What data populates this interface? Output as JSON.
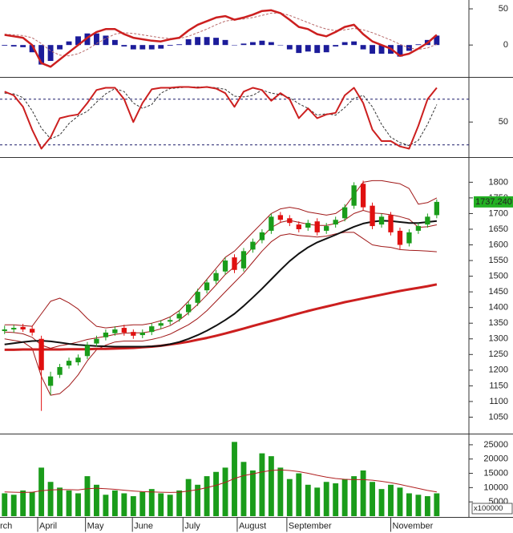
{
  "chart_data": {
    "x": [
      0,
      1,
      2,
      3,
      4,
      5,
      6,
      7,
      8,
      9,
      10,
      11,
      12,
      13,
      14,
      15,
      16,
      17,
      18,
      19,
      20,
      21,
      22,
      23,
      24,
      25,
      26,
      27,
      28,
      29,
      30,
      31,
      32,
      33,
      34,
      35,
      36,
      37,
      38,
      39,
      40,
      41,
      42,
      43,
      44,
      45,
      46,
      47
    ],
    "xlim": [
      -0.5,
      50.5
    ],
    "xticks": [
      {
        "value": -0.7,
        "label": "rch"
      },
      {
        "value": 3.6,
        "label": "April"
      },
      {
        "value": 8.8,
        "label": "May"
      },
      {
        "value": 13.9,
        "label": "June"
      },
      {
        "value": 19.4,
        "label": "July"
      },
      {
        "value": 25.3,
        "label": "August"
      },
      {
        "value": 30.7,
        "label": "September"
      },
      {
        "value": 42,
        "label": "November"
      }
    ],
    "panels": [
      {
        "type": "line",
        "ylim": [
          -43,
          60
        ],
        "yticks": [
          0,
          50
        ],
        "series": [
          {
            "style": "bar",
            "color": "#1c1c9a",
            "values": [
              -1,
              -2,
              -3,
              -10,
              -27,
              -22,
              -6,
              5,
              12,
              16,
              16,
              13,
              7,
              -2,
              -6,
              -6,
              -6,
              -5,
              -1,
              1,
              8,
              11,
              11,
              10,
              7,
              0,
              2,
              4,
              6,
              4,
              0,
              -6,
              -11,
              -9,
              -11,
              -10,
              -2,
              4,
              5,
              -6,
              -12,
              -12,
              -12,
              -16,
              -8,
              1,
              7,
              13
            ]
          },
          {
            "style": "dashed",
            "color": "#b86a6a",
            "values": [
              15,
              14,
              13,
              10,
              2,
              -8,
              -14,
              -15,
              -12,
              -6,
              2,
              9,
              15,
              17,
              16,
              14,
              12,
              10,
              9,
              9,
              12,
              17,
              22,
              28,
              33,
              35,
              36,
              38,
              41,
              44,
              44,
              41,
              36,
              31,
              26,
              22,
              20,
              21,
              23,
              21,
              17,
              12,
              7,
              1,
              -4,
              -6,
              -4,
              1
            ]
          },
          {
            "style": "line",
            "width": 2.5,
            "color": "#cc1f1f",
            "values": [
              14,
              12,
              10,
              0,
              -25,
              -30,
              -20,
              -10,
              0,
              10,
              18,
              22,
              22,
              15,
              10,
              8,
              6,
              5,
              8,
              10,
              20,
              28,
              33,
              38,
              40,
              35,
              38,
              42,
              47,
              48,
              44,
              35,
              25,
              22,
              15,
              12,
              18,
              25,
              28,
              15,
              5,
              0,
              -5,
              -15,
              -12,
              -5,
              3,
              14
            ]
          }
        ]
      },
      {
        "type": "line",
        "ylim": [
          5,
          105
        ],
        "yticks": [
          50
        ],
        "reference_lines": [
          80,
          20
        ],
        "series": [
          {
            "style": "dashed",
            "color": "#333333",
            "values": [
              88,
              87,
              82,
              65,
              42,
              28,
              33,
              48,
              58,
              64,
              76,
              87,
              94,
              90,
              75,
              68,
              73,
              88,
              94,
              95,
              96,
              96,
              96,
              95,
              93,
              84,
              83,
              85,
              92,
              88,
              86,
              82,
              74,
              68,
              59,
              61,
              59,
              69,
              81,
              85,
              70,
              47,
              30,
              23,
              19,
              26,
              47,
              73
            ]
          },
          {
            "style": "line",
            "width": 2,
            "color": "#cc1f1f",
            "values": [
              90,
              85,
              70,
              40,
              15,
              30,
              55,
              58,
              60,
              75,
              92,
              95,
              95,
              80,
              50,
              75,
              93,
              95,
              95,
              96,
              96,
              95,
              96,
              94,
              88,
              70,
              90,
              95,
              92,
              78,
              88,
              80,
              55,
              68,
              55,
              60,
              62,
              85,
              95,
              75,
              40,
              25,
              25,
              18,
              15,
              45,
              80,
              95
            ]
          }
        ]
      },
      {
        "type": "candlestick",
        "ylim": [
          1000,
          1870
        ],
        "yticks": [
          1050,
          1100,
          1150,
          1200,
          1250,
          1300,
          1350,
          1400,
          1450,
          1500,
          1550,
          1600,
          1650,
          1700,
          1750,
          1800
        ],
        "last_label": "1737.240",
        "last_label_color": "#22b022",
        "series": [
          {
            "style": "line",
            "width": 1,
            "color": "#a01818",
            "values": [
              1345,
              1345,
              1342,
              1340,
              1380,
              1420,
              1430,
              1415,
              1395,
              1365,
              1340,
              1335,
              1338,
              1342,
              1345,
              1345,
              1350,
              1358,
              1370,
              1390,
              1420,
              1455,
              1490,
              1525,
              1560,
              1580,
              1610,
              1640,
              1670,
              1700,
              1715,
              1720,
              1715,
              1705,
              1700,
              1695,
              1700,
              1720,
              1760,
              1800,
              1805,
              1805,
              1800,
              1795,
              1780,
              1730,
              1735,
              1750
            ]
          },
          {
            "style": "line",
            "width": 1,
            "color": "#a01818",
            "values": [
              1322,
              1320,
              1316,
              1305,
              1280,
              1270,
              1278,
              1283,
              1290,
              1298,
              1303,
              1308,
              1314,
              1318,
              1319,
              1319,
              1324,
              1332,
              1342,
              1360,
              1383,
              1410,
              1440,
              1472,
              1505,
              1530,
              1560,
              1592,
              1625,
              1655,
              1672,
              1678,
              1672,
              1666,
              1662,
              1662,
              1668,
              1680,
              1700,
              1710,
              1702,
              1700,
              1696,
              1690,
              1682,
              1656,
              1658,
              1664
            ]
          },
          {
            "style": "line",
            "width": 1,
            "color": "#a01818",
            "values": [
              1300,
              1295,
              1290,
              1270,
              1180,
              1120,
              1125,
              1150,
              1185,
              1230,
              1265,
              1280,
              1290,
              1293,
              1293,
              1293,
              1298,
              1305,
              1315,
              1330,
              1345,
              1365,
              1390,
              1420,
              1450,
              1480,
              1510,
              1545,
              1580,
              1610,
              1630,
              1635,
              1630,
              1628,
              1625,
              1628,
              1635,
              1640,
              1640,
              1620,
              1600,
              1595,
              1592,
              1585,
              1583,
              1582,
              1580,
              1578
            ]
          },
          {
            "style": "line",
            "width": 3,
            "color": "#cc1f1f",
            "values": [
              1265,
              1265,
              1266,
              1266,
              1266,
              1266,
              1266,
              1267,
              1267,
              1267,
              1268,
              1268,
              1269,
              1270,
              1271,
              1273,
              1275,
              1278,
              1282,
              1286,
              1291,
              1297,
              1303,
              1310,
              1317,
              1325,
              1333,
              1341,
              1349,
              1357,
              1365,
              1373,
              1381,
              1389,
              1396,
              1403,
              1410,
              1417,
              1423,
              1429,
              1435,
              1441,
              1447,
              1453,
              1458,
              1463,
              1468,
              1474
            ]
          },
          {
            "style": "line",
            "width": 2,
            "color": "#111111",
            "values": [
              1282,
              1286,
              1290,
              1293,
              1294,
              1292,
              1288,
              1284,
              1281,
              1279,
              1277,
              1276,
              1275,
              1275,
              1275,
              1275,
              1276,
              1278,
              1283,
              1290,
              1300,
              1312,
              1326,
              1342,
              1360,
              1380,
              1405,
              1432,
              1460,
              1490,
              1520,
              1548,
              1572,
              1592,
              1608,
              1620,
              1632,
              1645,
              1658,
              1668,
              1674,
              1677,
              1676,
              1673,
              1670,
              1670,
              1673,
              1676
            ]
          },
          {
            "style": "candle",
            "up_color": "#1a9c1a",
            "down_color": "#e01010",
            "open": [
              1325,
              1330,
              1338,
              1332,
              1300,
              1150,
              1185,
              1215,
              1225,
              1245,
              1285,
              1305,
              1318,
              1335,
              1322,
              1312,
              1322,
              1342,
              1355,
              1365,
              1385,
              1415,
              1455,
              1485,
              1515,
              1560,
              1525,
              1585,
              1615,
              1645,
              1695,
              1685,
              1665,
              1655,
              1675,
              1645,
              1665,
              1685,
              1725,
              1795,
              1725,
              1665,
              1695,
              1645,
              1605,
              1645,
              1665,
              1695
            ],
            "high": [
              1342,
              1345,
              1348,
              1342,
              1310,
              1195,
              1220,
              1240,
              1250,
              1290,
              1310,
              1330,
              1340,
              1345,
              1330,
              1330,
              1350,
              1360,
              1370,
              1390,
              1420,
              1460,
              1490,
              1520,
              1560,
              1570,
              1590,
              1620,
              1650,
              1700,
              1705,
              1695,
              1675,
              1680,
              1685,
              1670,
              1690,
              1730,
              1800,
              1805,
              1735,
              1700,
              1705,
              1655,
              1650,
              1670,
              1700,
              1745
            ],
            "low": [
              1315,
              1320,
              1322,
              1310,
              1070,
              1120,
              1175,
              1205,
              1215,
              1235,
              1275,
              1295,
              1310,
              1310,
              1300,
              1302,
              1312,
              1332,
              1345,
              1355,
              1375,
              1405,
              1445,
              1475,
              1505,
              1510,
              1515,
              1575,
              1605,
              1635,
              1670,
              1660,
              1640,
              1645,
              1630,
              1635,
              1655,
              1675,
              1715,
              1710,
              1650,
              1655,
              1630,
              1585,
              1595,
              1635,
              1655,
              1685
            ],
            "close": [
              1330,
              1335,
              1330,
              1320,
              1200,
              1180,
              1210,
              1230,
              1240,
              1280,
              1300,
              1320,
              1330,
              1320,
              1310,
              1320,
              1340,
              1350,
              1360,
              1380,
              1410,
              1450,
              1480,
              1510,
              1550,
              1520,
              1580,
              1610,
              1640,
              1690,
              1680,
              1670,
              1650,
              1670,
              1640,
              1660,
              1680,
              1720,
              1790,
              1720,
              1660,
              1690,
              1640,
              1600,
              1640,
              1660,
              1690,
              1737.24
            ]
          }
        ]
      },
      {
        "type": "bar",
        "ylim": [
          0,
          27500
        ],
        "yticks": [
          5000,
          10000,
          15000,
          20000,
          25000
        ],
        "unit_label": "x100000",
        "series": [
          {
            "style": "bar",
            "color": "#1a9c1a",
            "values": [
              8000,
              7500,
              9000,
              8500,
              17000,
              12000,
              10000,
              9000,
              8000,
              14000,
              11000,
              7500,
              9000,
              8000,
              7000,
              8500,
              9500,
              8000,
              7500,
              9000,
              13000,
              11000,
              14000,
              15500,
              17000,
              26000,
              19000,
              16000,
              22000,
              21000,
              17000,
              13000,
              15000,
              11000,
              10000,
              12000,
              11500,
              13000,
              14000,
              16000,
              12000,
              9500,
              11000,
              10000,
              8000,
              7500,
              7000,
              8000
            ]
          },
          {
            "style": "line",
            "width": 1,
            "color": "#b02020",
            "values": [
              8500,
              8400,
              8300,
              8400,
              8900,
              9200,
              9300,
              9300,
              9200,
              9600,
              9800,
              9600,
              9400,
              9100,
              8800,
              8600,
              8500,
              8400,
              8300,
              8400,
              8800,
              9300,
              10000,
              10800,
              11800,
              13200,
              14200,
              14800,
              15500,
              16000,
              16200,
              16000,
              15600,
              15000,
              14300,
              13700,
              13200,
              12900,
              12800,
              12800,
              12600,
              12200,
              11700,
              11100,
              10400,
              9700,
              9000,
              8500
            ]
          }
        ]
      }
    ]
  }
}
